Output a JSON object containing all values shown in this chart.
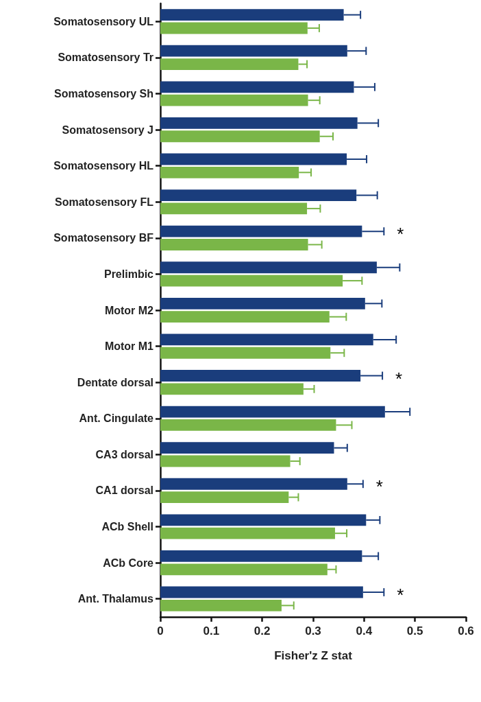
{
  "chart_data": {
    "type": "bar",
    "orientation": "horizontal",
    "xlabel": "Fisher'z Z stat",
    "categories": [
      "Somatosensory UL",
      "Somatosensory Tr",
      "Somatosensory Sh",
      "Somatosensory J",
      "Somatosensory HL",
      "Somatosensory FL",
      "Somatosensory BF",
      "Prelimbic",
      "Motor M2",
      "Motor M1",
      "Dentate dorsal",
      "Ant. Cingulate",
      "CA3 dorsal",
      "CA1 dorsal",
      "ACb Shell",
      "ACb Core",
      "Ant. Thalamus"
    ],
    "series": [
      {
        "color": "#1a3d7c",
        "values": [
          0.36,
          0.367,
          0.38,
          0.387,
          0.366,
          0.385,
          0.396,
          0.425,
          0.402,
          0.418,
          0.393,
          0.441,
          0.341,
          0.367,
          0.404,
          0.396,
          0.398
        ],
        "errors": [
          [
            0.36,
            0.393
          ],
          [
            0.367,
            0.404
          ],
          [
            0.38,
            0.421
          ],
          [
            0.387,
            0.428
          ],
          [
            0.366,
            0.405
          ],
          [
            0.385,
            0.426
          ],
          [
            0.396,
            0.439
          ],
          [
            0.425,
            0.47
          ],
          [
            0.402,
            0.435
          ],
          [
            0.418,
            0.463
          ],
          [
            0.393,
            0.436
          ],
          [
            0.441,
            0.49
          ],
          [
            0.341,
            0.367
          ],
          [
            0.367,
            0.398
          ],
          [
            0.404,
            0.431
          ],
          [
            0.396,
            0.428
          ],
          [
            0.398,
            0.439
          ]
        ],
        "value_labels": [
          null,
          null,
          null,
          null,
          null,
          null,
          "*",
          null,
          null,
          null,
          "*",
          null,
          null,
          "*",
          null,
          null,
          "*"
        ]
      },
      {
        "color": "#7ab648",
        "values": [
          0.289,
          0.271,
          0.29,
          0.313,
          0.272,
          0.288,
          0.29,
          0.358,
          0.332,
          0.334,
          0.281,
          0.345,
          0.255,
          0.252,
          0.343,
          0.328,
          0.238
        ],
        "errors": [
          [
            0.289,
            0.312
          ],
          [
            0.271,
            0.288
          ],
          [
            0.29,
            0.313
          ],
          [
            0.313,
            0.339
          ],
          [
            0.272,
            0.296
          ],
          [
            0.288,
            0.314
          ],
          [
            0.29,
            0.317
          ],
          [
            0.358,
            0.396
          ],
          [
            0.332,
            0.365
          ],
          [
            0.334,
            0.361
          ],
          [
            0.281,
            0.302
          ],
          [
            0.345,
            0.376
          ],
          [
            0.255,
            0.274
          ],
          [
            0.252,
            0.271
          ],
          [
            0.343,
            0.366
          ],
          [
            0.328,
            0.345
          ],
          [
            0.238,
            0.262
          ]
        ]
      }
    ],
    "xlim": [
      0,
      0.6
    ],
    "xticks": [
      0,
      0.1,
      0.2,
      0.3,
      0.4,
      0.5,
      0.6
    ],
    "grid": false
  }
}
